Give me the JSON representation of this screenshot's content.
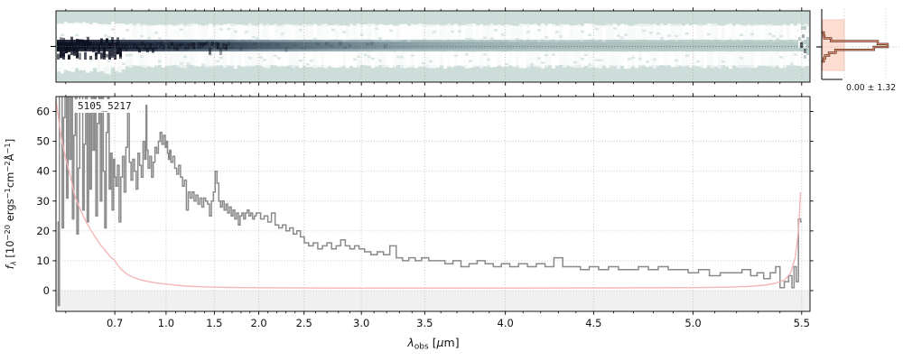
{
  "labels": {
    "source": "5105_5217",
    "stats": "0.00 ± 1.32",
    "xlabel_parts": [
      [
        "i",
        "λ"
      ],
      [
        "sub",
        "obs"
      ],
      [
        "n",
        " ["
      ],
      [
        "i",
        "μ"
      ],
      [
        "n",
        "m]"
      ]
    ],
    "ylabel_parts": [
      [
        "i",
        "f"
      ],
      [
        "isub",
        "λ"
      ],
      [
        "n",
        " [10"
      ],
      [
        "sup",
        "−20"
      ],
      [
        "n",
        " ergs"
      ],
      [
        "sup",
        "−1"
      ],
      [
        "n",
        "cm"
      ],
      [
        "sup",
        "−2"
      ],
      [
        "n",
        "Å"
      ],
      [
        "sup",
        "−1"
      ],
      [
        "n",
        "]"
      ]
    ]
  },
  "colors": {
    "bg2d": "#cdddda",
    "band_base": "#eef4f2",
    "white": "#ffffff",
    "teal_speck": "#d5e3df",
    "trace_dark": "#0d1120",
    "grid1d": "#b9b9b9",
    "grid2d": "#b3a39c",
    "trace_dotted": "#6e6458",
    "flux": "#8a8a8a",
    "error": "#f5b2b2",
    "hist_outline": "#47291f",
    "hist_inner": "#e98f6d",
    "hist_band": "#fcd9cb",
    "hist_band_edge": "#f7c3b2",
    "axhspan": "#f0f0f0",
    "spine": "#000000"
  },
  "axes": {
    "xticks": [
      0.7,
      1.0,
      1.5,
      2.0,
      2.5,
      3.0,
      3.5,
      4.0,
      4.5,
      5.0,
      5.5
    ],
    "xtick_labels": [
      "0.7",
      "1.0",
      "1.5",
      "2.0",
      "2.5",
      "3.0",
      "3.5",
      "4.0",
      "4.5",
      "5.0",
      "5.5"
    ],
    "yticks": [
      0,
      10,
      20,
      30,
      40,
      50,
      60
    ],
    "ytick_labels": [
      "0",
      "10",
      "20",
      "30",
      "40",
      "50",
      "60"
    ],
    "minor_start": 0.6,
    "minor_step": 0.1,
    "wl_anchors": [
      0.58,
      0.7,
      1.0,
      1.5,
      2.0,
      2.5,
      3.0,
      3.5,
      4.0,
      4.5,
      5.0,
      5.5,
      5.52
    ],
    "frac_anchors": [
      0,
      0.078,
      0.146,
      0.21,
      0.269,
      0.329,
      0.405,
      0.489,
      0.596,
      0.713,
      0.845,
      0.989,
      1.0
    ],
    "ylim": [
      -6.95,
      65
    ]
  },
  "chart_data": {
    "type": "line",
    "title": "5105_5217",
    "xlabel": "λ_obs [μm]",
    "ylabel": "f_λ [10⁻²⁰ ergs⁻¹cm⁻²Å⁻¹]",
    "xticks": [
      0.7,
      1.0,
      1.5,
      2.0,
      2.5,
      3.0,
      3.5,
      4.0,
      4.5,
      5.0,
      5.5
    ],
    "yticks": [
      0,
      10,
      20,
      30,
      40,
      50,
      60
    ],
    "ylim": [
      -7,
      65
    ],
    "grid": true,
    "series": [
      {
        "name": "flux",
        "color": "#8a8a8a",
        "style": "steps-mid",
        "lam": [
          0.583,
          0.586,
          0.588,
          0.591,
          0.594,
          0.597,
          0.6,
          0.603,
          0.606,
          0.609,
          0.612,
          0.615,
          0.618,
          0.621,
          0.624,
          0.627,
          0.63,
          0.633,
          0.636,
          0.639,
          0.642,
          0.645,
          0.648,
          0.651,
          0.654,
          0.657,
          0.66,
          0.663,
          0.666,
          0.669,
          0.672,
          0.675,
          0.678,
          0.681,
          0.684,
          0.687,
          0.69,
          0.693,
          0.696,
          0.699,
          0.702,
          0.71,
          0.72,
          0.73,
          0.74,
          0.75,
          0.76,
          0.77,
          0.78,
          0.79,
          0.8,
          0.81,
          0.82,
          0.83,
          0.84,
          0.85,
          0.86,
          0.87,
          0.88,
          0.885,
          0.89,
          0.9,
          0.91,
          0.92,
          0.93,
          0.94,
          0.95,
          0.96,
          0.97,
          0.98,
          0.99,
          1.0,
          1.01,
          1.02,
          1.03,
          1.04,
          1.06,
          1.08,
          1.1,
          1.12,
          1.14,
          1.16,
          1.18,
          1.2,
          1.22,
          1.24,
          1.26,
          1.28,
          1.3,
          1.32,
          1.34,
          1.36,
          1.38,
          1.4,
          1.42,
          1.44,
          1.46,
          1.48,
          1.5,
          1.52,
          1.54,
          1.56,
          1.58,
          1.6,
          1.62,
          1.64,
          1.66,
          1.68,
          1.7,
          1.72,
          1.74,
          1.76,
          1.78,
          1.8,
          1.82,
          1.84,
          1.86,
          1.88,
          1.9,
          1.92,
          1.94,
          1.96,
          1.98,
          2.0,
          2.04,
          2.08,
          2.12,
          2.16,
          2.2,
          2.24,
          2.28,
          2.32,
          2.36,
          2.4,
          2.44,
          2.48,
          2.52,
          2.56,
          2.6,
          2.64,
          2.68,
          2.72,
          2.76,
          2.8,
          2.84,
          2.88,
          2.92,
          2.96,
          3.0,
          3.05,
          3.1,
          3.15,
          3.2,
          3.25,
          3.3,
          3.35,
          3.4,
          3.45,
          3.5,
          3.55,
          3.6,
          3.65,
          3.7,
          3.75,
          3.8,
          3.85,
          3.9,
          3.95,
          4.0,
          4.05,
          4.1,
          4.15,
          4.2,
          4.25,
          4.3,
          4.35,
          4.4,
          4.45,
          4.5,
          4.55,
          4.6,
          4.65,
          4.7,
          4.75,
          4.8,
          4.85,
          4.9,
          4.95,
          5.0,
          5.05,
          5.1,
          5.15,
          5.2,
          5.25,
          5.28,
          5.31,
          5.34,
          5.37,
          5.39,
          5.41,
          5.43,
          5.45,
          5.46,
          5.47,
          5.48,
          5.49,
          5.5
        ],
        "val": [
          23,
          -5,
          66,
          66,
          21,
          58,
          66,
          31,
          66,
          44,
          66,
          24,
          52,
          66,
          19,
          41,
          66,
          66,
          27,
          49,
          66,
          23,
          60,
          34,
          66,
          47,
          66,
          25,
          56,
          66,
          30,
          66,
          40,
          21,
          53,
          66,
          34,
          46,
          27,
          44,
          38,
          35,
          42,
          23,
          38,
          45,
          33,
          48,
          61,
          43,
          37,
          44,
          40,
          34,
          46,
          42,
          38,
          50,
          44,
          62,
          47,
          41,
          45,
          38,
          43,
          48,
          46,
          50,
          53,
          49,
          52,
          48,
          50,
          46,
          44,
          47,
          43,
          45,
          41,
          39,
          42,
          38,
          35,
          37,
          27,
          33,
          31,
          33,
          30,
          32,
          29,
          31,
          28,
          31,
          30,
          29,
          25,
          30,
          33,
          40,
          36,
          30,
          28,
          30,
          27,
          29,
          26,
          28,
          25,
          27,
          24,
          26,
          22,
          25,
          26,
          24,
          26,
          27,
          25,
          26,
          24,
          25,
          26,
          26,
          24,
          25,
          23,
          26,
          22,
          21,
          22,
          20,
          21,
          19,
          20,
          18,
          16,
          15,
          16,
          14,
          15,
          16,
          14,
          15,
          17,
          15,
          14,
          15,
          14,
          13,
          12,
          13,
          12,
          15,
          11,
          10,
          11,
          10,
          11,
          10,
          10,
          9,
          10,
          8,
          9,
          10,
          9,
          8,
          9,
          8,
          9,
          8,
          9,
          8,
          11,
          8,
          8,
          7,
          8,
          7,
          8,
          7,
          7,
          8,
          7,
          8,
          7,
          7,
          6,
          7,
          5,
          6,
          6,
          7,
          5,
          6,
          4,
          6,
          8,
          1,
          3,
          5,
          1,
          8,
          3,
          24,
          23
        ]
      },
      {
        "name": "uncertainty",
        "color": "#f5b2b2",
        "style": "line",
        "lam": [
          0.58,
          0.59,
          0.6,
          0.61,
          0.615,
          0.62,
          0.63,
          0.64,
          0.65,
          0.66,
          0.67,
          0.68,
          0.69,
          0.7,
          0.72,
          0.74,
          0.76,
          0.78,
          0.81,
          0.85,
          0.9,
          0.95,
          1.0,
          1.1,
          1.2,
          1.35,
          1.5,
          1.8,
          2.2,
          3.0,
          4.0,
          4.6,
          5.0,
          5.15,
          5.25,
          5.33,
          5.38,
          5.42,
          5.45,
          5.47,
          5.485,
          5.495
        ],
        "val": [
          64,
          52,
          44,
          38,
          34,
          31,
          27,
          23.5,
          20.5,
          18,
          15.5,
          13.5,
          11.5,
          10,
          8.3,
          7,
          6,
          5.2,
          4.4,
          3.6,
          3,
          2.5,
          2.2,
          1.8,
          1.5,
          1.3,
          1.15,
          1.0,
          0.95,
          0.85,
          0.85,
          0.9,
          1.0,
          1.15,
          1.4,
          1.8,
          2.5,
          3.5,
          6,
          11,
          20,
          33
        ]
      }
    ]
  },
  "hist_data": {
    "type": "histogram",
    "orientation": "horizontal",
    "label": "0.00 ± 1.32",
    "mean": 0.0,
    "sigma": 1.32,
    "row_values": [
      0.03,
      0.04,
      0.14,
      0.85,
      1.0,
      0.79,
      0.21,
      0.11,
      0.05,
      0.03
    ]
  }
}
